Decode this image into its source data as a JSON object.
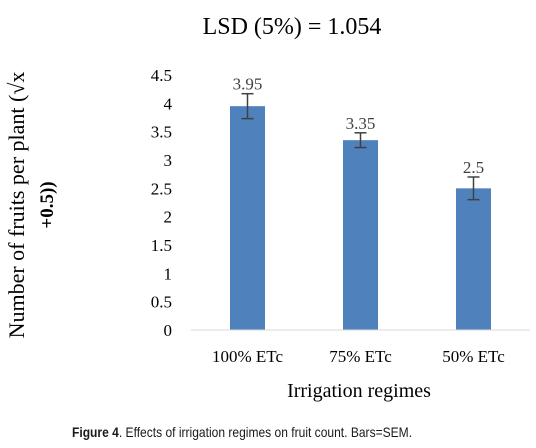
{
  "chart_data": {
    "type": "bar",
    "title": "LSD (5%) = 1.054",
    "xlabel": "Irrigation regimes",
    "ylabel_line1": "Number of fruits per plant (√x",
    "ylabel_line2": "+0.5))",
    "categories": [
      "100% ETc",
      "75% ETc",
      "50% ETc"
    ],
    "values": [
      3.95,
      3.35,
      2.5
    ],
    "data_labels": [
      "3.95",
      "3.35",
      "2.5"
    ],
    "sem": [
      0.22,
      0.13,
      0.2
    ],
    "ylim": [
      0,
      4.5
    ],
    "yticks": [
      "0",
      "0.5",
      "1",
      "1.5",
      "2",
      "2.5",
      "3",
      "3.5",
      "4",
      "4.5"
    ],
    "grid": false,
    "bar_color": "#4f81bd",
    "errorbar_color": "#404040"
  },
  "caption": {
    "label": "Figure 4",
    "text": ". Effects of irrigation regimes on fruit count. Bars=SEM."
  }
}
